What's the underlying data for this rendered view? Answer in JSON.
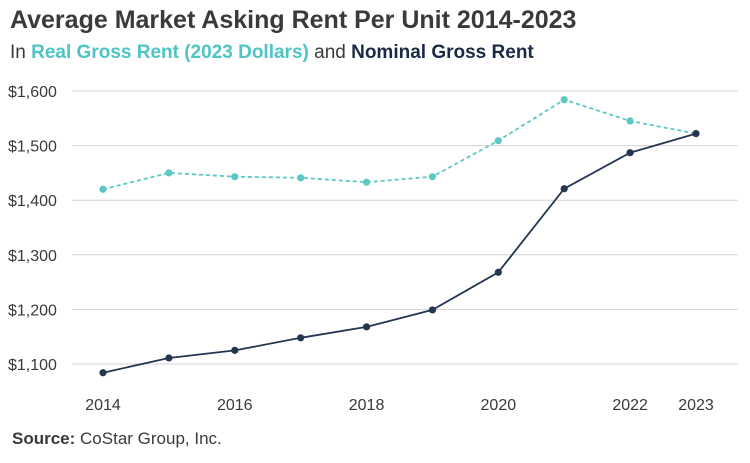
{
  "title": "Average Market Asking Rent Per Unit 2014-2023",
  "subtitle": {
    "prefix": "In ",
    "real_label": "Real Gross Rent (2023 Dollars)",
    "middle": " and ",
    "nominal_label": "Nominal Gross Rent"
  },
  "source": {
    "label": "Source:",
    "text": " CoStar Group, Inc."
  },
  "colors": {
    "real": "#5cc8c6",
    "nominal": "#253650",
    "grid": "#d3d3d3"
  },
  "chart_data": {
    "type": "line",
    "x": [
      2014,
      2015,
      2016,
      2017,
      2018,
      2019,
      2020,
      2021,
      2022,
      2023
    ],
    "x_tick_labels": [
      "2014",
      "2016",
      "2018",
      "2020",
      "2022",
      "2023"
    ],
    "x_tick_values": [
      2014,
      2016,
      2018,
      2020,
      2022,
      2023
    ],
    "y_tick_labels": [
      "$1,600",
      "$1,500",
      "$1,400",
      "$1,300",
      "$1,200",
      "$1,100"
    ],
    "y_tick_values": [
      1600,
      1500,
      1400,
      1300,
      1200,
      1100
    ],
    "ylim": [
      1075,
      1610
    ],
    "xlim": [
      2014,
      2023
    ],
    "grid": "horizontal",
    "series": [
      {
        "name": "Real Gross Rent (2023 Dollars)",
        "style": "dotted",
        "values": [
          1420,
          1450,
          1443,
          1441,
          1433,
          1443,
          1509,
          1584,
          1545,
          1522
        ]
      },
      {
        "name": "Nominal Gross Rent",
        "style": "solid",
        "values": [
          1084,
          1111,
          1125,
          1148,
          1168,
          1199,
          1268,
          1421,
          1487,
          1522
        ]
      }
    ]
  }
}
